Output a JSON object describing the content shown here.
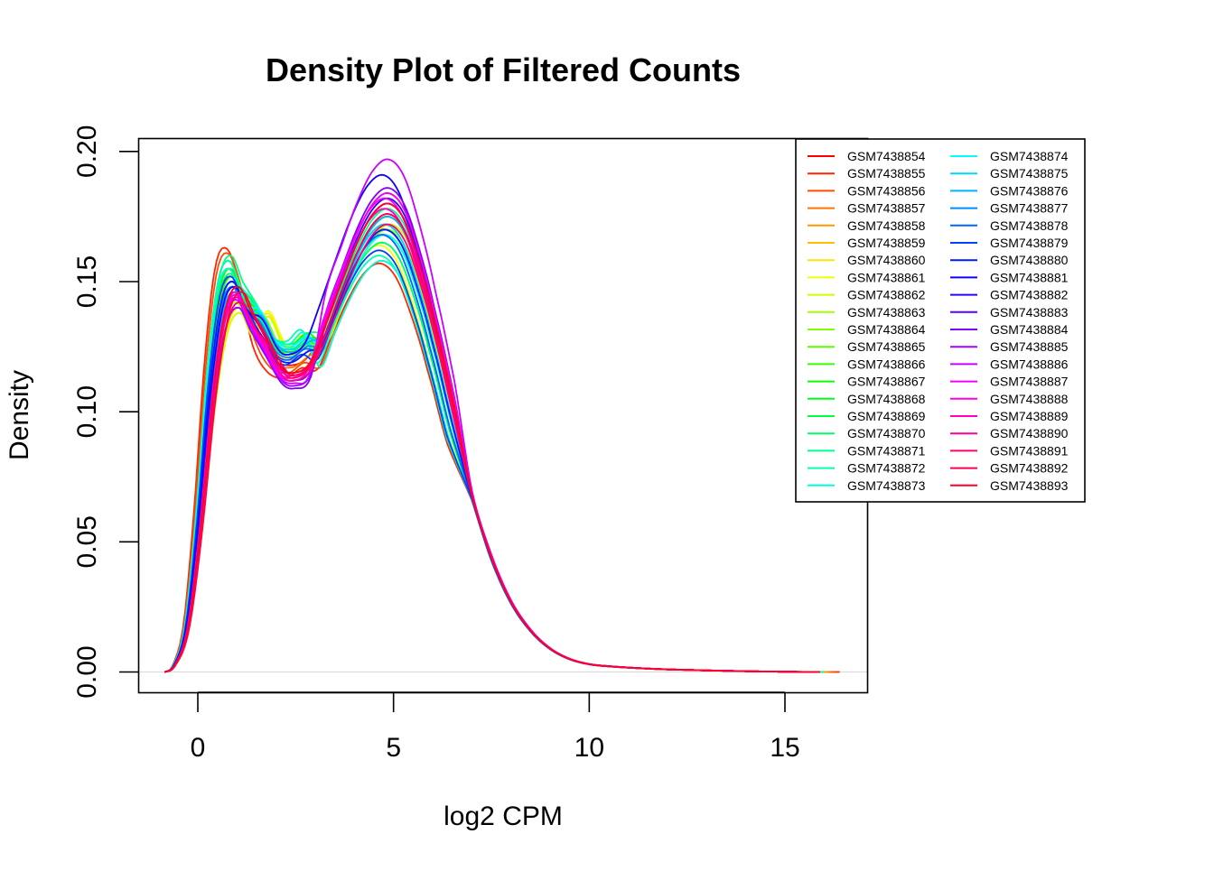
{
  "chart_data": {
    "type": "line",
    "title": "Density Plot of Filtered Counts",
    "xlabel": "log2 CPM",
    "ylabel": "Density",
    "xlim": [
      -1.5,
      17.1
    ],
    "ylim": [
      -0.0078,
      0.2048
    ],
    "x_ticks": [
      0,
      5,
      10,
      15
    ],
    "y_ticks": [
      0.0,
      0.05,
      0.1,
      0.15,
      0.2
    ],
    "x_tick_labels": [
      "0",
      "5",
      "10",
      "15"
    ],
    "y_tick_labels": [
      "0.00",
      "0.05",
      "0.10",
      "0.15",
      "0.20"
    ],
    "grid": false,
    "legend_position": "top-right",
    "legend_columns": 2,
    "baseline": 0,
    "shape_anchors": {
      "x": [
        -0.85,
        -0.6,
        -0.3,
        0.0,
        0.3,
        0.6,
        0.9,
        1.2,
        1.6,
        2.0,
        2.4,
        2.8,
        3.2,
        3.6,
        4.0,
        4.4,
        4.8,
        5.2,
        5.6,
        6.0,
        6.5,
        7.0,
        7.5,
        8.0,
        8.5,
        9.0,
        9.5,
        10.0,
        10.5,
        11.0,
        11.5,
        12.0,
        12.5,
        13.0,
        14.0,
        15.0,
        16.0
      ],
      "y": [
        0.0,
        0.003,
        0.018,
        0.06,
        0.115,
        0.15,
        0.158,
        0.148,
        0.13,
        0.119,
        0.117,
        0.121,
        0.132,
        0.148,
        0.163,
        0.174,
        0.178,
        0.172,
        0.155,
        0.132,
        0.1,
        0.068,
        0.044,
        0.027,
        0.016,
        0.009,
        0.005,
        0.003,
        0.0022,
        0.0017,
        0.0013,
        0.001,
        0.0008,
        0.0006,
        0.0003,
        0.0001,
        0.0
      ]
    },
    "series": [
      {
        "name": "GSM7438854",
        "color": "#FF0000",
        "peak1_x": 0.8,
        "peak1_y": 0.158,
        "trough_y": 0.118,
        "peak2_x": 4.9,
        "peak2_y": 0.18,
        "x_end": 16.1
      },
      {
        "name": "GSM7438855",
        "color": "#FF2600",
        "peak1_x": 0.7,
        "peak1_y": 0.163,
        "trough_y": 0.113,
        "peak2_x": 4.6,
        "peak2_y": 0.157,
        "x_end": 16.4
      },
      {
        "name": "GSM7438856",
        "color": "#FF4D00",
        "peak1_x": 0.75,
        "peak1_y": 0.161,
        "trough_y": 0.115,
        "peak2_x": 4.7,
        "peak2_y": 0.158,
        "x_end": 16.3
      },
      {
        "name": "GSM7438857",
        "color": "#FF7300",
        "peak1_x": 0.8,
        "peak1_y": 0.155,
        "trough_y": 0.117,
        "peak2_x": 4.8,
        "peak2_y": 0.17,
        "x_end": 16.2
      },
      {
        "name": "GSM7438858",
        "color": "#FF9900",
        "peak1_x": 0.9,
        "peak1_y": 0.15,
        "trough_y": 0.12,
        "peak2_x": 4.9,
        "peak2_y": 0.175,
        "x_end": 16.1
      },
      {
        "name": "GSM7438859",
        "color": "#FFBF00",
        "peak1_x": 1.0,
        "peak1_y": 0.145,
        "trough_y": 0.122,
        "peak2_x": 4.8,
        "peak2_y": 0.17,
        "x_end": 16.0
      },
      {
        "name": "GSM7438860",
        "color": "#FFE500",
        "peak1_x": 1.1,
        "peak1_y": 0.14,
        "trough_y": 0.124,
        "peak2_x": 4.9,
        "peak2_y": 0.175,
        "x_end": 16.0
      },
      {
        "name": "GSM7438861",
        "color": "#F2FF00",
        "peak1_x": 1.1,
        "peak1_y": 0.138,
        "trough_y": 0.125,
        "peak2_x": 4.6,
        "peak2_y": 0.164,
        "x_end": 16.0
      },
      {
        "name": "GSM7438862",
        "color": "#CCFF00",
        "peak1_x": 1.1,
        "peak1_y": 0.138,
        "trough_y": 0.123,
        "peak2_x": 5.0,
        "peak2_y": 0.172,
        "x_end": 16.0
      },
      {
        "name": "GSM7438863",
        "color": "#A6FF00",
        "peak1_x": 1.0,
        "peak1_y": 0.142,
        "trough_y": 0.122,
        "peak2_x": 4.9,
        "peak2_y": 0.17,
        "x_end": 16.0
      },
      {
        "name": "GSM7438864",
        "color": "#80FF00",
        "peak1_x": 1.0,
        "peak1_y": 0.145,
        "trough_y": 0.123,
        "peak2_x": 4.8,
        "peak2_y": 0.168,
        "x_end": 16.0
      },
      {
        "name": "GSM7438865",
        "color": "#59FF00",
        "peak1_x": 0.9,
        "peak1_y": 0.15,
        "trough_y": 0.124,
        "peak2_x": 4.7,
        "peak2_y": 0.165,
        "x_end": 16.0
      },
      {
        "name": "GSM7438866",
        "color": "#33FF00",
        "peak1_x": 0.9,
        "peak1_y": 0.152,
        "trough_y": 0.125,
        "peak2_x": 4.8,
        "peak2_y": 0.168,
        "x_end": 16.0
      },
      {
        "name": "GSM7438867",
        "color": "#0DFF00",
        "peak1_x": 0.8,
        "peak1_y": 0.158,
        "trough_y": 0.126,
        "peak2_x": 4.8,
        "peak2_y": 0.172,
        "x_end": 16.0
      },
      {
        "name": "GSM7438868",
        "color": "#00FF1A",
        "peak1_x": 0.85,
        "peak1_y": 0.155,
        "trough_y": 0.124,
        "peak2_x": 4.9,
        "peak2_y": 0.175,
        "x_end": 16.0
      },
      {
        "name": "GSM7438869",
        "color": "#00FF40",
        "peak1_x": 0.85,
        "peak1_y": 0.153,
        "trough_y": 0.123,
        "peak2_x": 4.8,
        "peak2_y": 0.17,
        "x_end": 16.0
      },
      {
        "name": "GSM7438870",
        "color": "#00FF66",
        "peak1_x": 0.9,
        "peak1_y": 0.15,
        "trough_y": 0.122,
        "peak2_x": 4.7,
        "peak2_y": 0.165,
        "x_end": 16.0
      },
      {
        "name": "GSM7438871",
        "color": "#00FF8C",
        "peak1_x": 0.85,
        "peak1_y": 0.16,
        "trough_y": 0.126,
        "peak2_x": 4.9,
        "peak2_y": 0.178,
        "x_end": 16.0
      },
      {
        "name": "GSM7438872",
        "color": "#00FFB3",
        "peak1_x": 0.8,
        "peak1_y": 0.158,
        "trough_y": 0.127,
        "peak2_x": 4.6,
        "peak2_y": 0.16,
        "x_end": 15.9
      },
      {
        "name": "GSM7438873",
        "color": "#00FFD9",
        "peak1_x": 0.8,
        "peak1_y": 0.155,
        "trough_y": 0.126,
        "peak2_x": 4.7,
        "peak2_y": 0.158,
        "x_end": 15.9
      },
      {
        "name": "GSM7438874",
        "color": "#00FFFF",
        "peak1_x": 0.9,
        "peak1_y": 0.15,
        "trough_y": 0.125,
        "peak2_x": 4.8,
        "peak2_y": 0.168,
        "x_end": 15.9
      },
      {
        "name": "GSM7438875",
        "color": "#00D9FF",
        "peak1_x": 0.9,
        "peak1_y": 0.148,
        "trough_y": 0.124,
        "peak2_x": 4.8,
        "peak2_y": 0.172,
        "x_end": 15.9
      },
      {
        "name": "GSM7438876",
        "color": "#00B2FF",
        "peak1_x": 0.95,
        "peak1_y": 0.146,
        "trough_y": 0.123,
        "peak2_x": 4.9,
        "peak2_y": 0.175,
        "x_end": 15.9
      },
      {
        "name": "GSM7438877",
        "color": "#008CFF",
        "peak1_x": 0.9,
        "peak1_y": 0.148,
        "trough_y": 0.121,
        "peak2_x": 4.8,
        "peak2_y": 0.17,
        "x_end": 15.9
      },
      {
        "name": "GSM7438878",
        "color": "#0066FF",
        "peak1_x": 0.9,
        "peak1_y": 0.15,
        "trough_y": 0.12,
        "peak2_x": 4.7,
        "peak2_y": 0.168,
        "x_end": 15.9
      },
      {
        "name": "GSM7438879",
        "color": "#0040FF",
        "peak1_x": 0.85,
        "peak1_y": 0.152,
        "trough_y": 0.118,
        "peak2_x": 4.6,
        "peak2_y": 0.162,
        "x_end": 15.9
      },
      {
        "name": "GSM7438880",
        "color": "#001AFF",
        "peak1_x": 0.9,
        "peak1_y": 0.15,
        "trough_y": 0.119,
        "peak2_x": 4.8,
        "peak2_y": 0.17,
        "x_end": 15.9
      },
      {
        "name": "GSM7438881",
        "color": "#0D00FF",
        "peak1_x": 0.95,
        "peak1_y": 0.148,
        "trough_y": 0.122,
        "peak2_x": 4.7,
        "peak2_y": 0.191,
        "x_end": 15.9
      },
      {
        "name": "GSM7438882",
        "color": "#3300FF",
        "peak1_x": 1.0,
        "peak1_y": 0.145,
        "trough_y": 0.115,
        "peak2_x": 4.9,
        "peak2_y": 0.182,
        "x_end": 15.9
      },
      {
        "name": "GSM7438883",
        "color": "#5900FF",
        "peak1_x": 1.0,
        "peak1_y": 0.143,
        "trough_y": 0.112,
        "peak2_x": 4.9,
        "peak2_y": 0.184,
        "x_end": 15.9
      },
      {
        "name": "GSM7438884",
        "color": "#8000FF",
        "peak1_x": 1.05,
        "peak1_y": 0.14,
        "trough_y": 0.109,
        "peak2_x": 4.9,
        "peak2_y": 0.186,
        "x_end": 15.9
      },
      {
        "name": "GSM7438885",
        "color": "#A600FF",
        "peak1_x": 1.05,
        "peak1_y": 0.14,
        "trough_y": 0.11,
        "peak2_x": 4.9,
        "peak2_y": 0.18,
        "x_end": 15.9
      },
      {
        "name": "GSM7438886",
        "color": "#CC00FF",
        "peak1_x": 1.0,
        "peak1_y": 0.143,
        "trough_y": 0.111,
        "peak2_x": 4.9,
        "peak2_y": 0.197,
        "x_end": 15.9
      },
      {
        "name": "GSM7438887",
        "color": "#F200FF",
        "peak1_x": 1.0,
        "peak1_y": 0.144,
        "trough_y": 0.112,
        "peak2_x": 4.8,
        "peak2_y": 0.182,
        "x_end": 15.9
      },
      {
        "name": "GSM7438888",
        "color": "#FF00E5",
        "peak1_x": 1.0,
        "peak1_y": 0.145,
        "trough_y": 0.114,
        "peak2_x": 4.9,
        "peak2_y": 0.184,
        "x_end": 15.9
      },
      {
        "name": "GSM7438889",
        "color": "#FF00BF",
        "peak1_x": 1.0,
        "peak1_y": 0.146,
        "trough_y": 0.113,
        "peak2_x": 4.8,
        "peak2_y": 0.178,
        "x_end": 15.9
      },
      {
        "name": "GSM7438890",
        "color": "#FF0099",
        "peak1_x": 1.05,
        "peak1_y": 0.144,
        "trough_y": 0.112,
        "peak2_x": 4.9,
        "peak2_y": 0.176,
        "x_end": 15.9
      },
      {
        "name": "GSM7438891",
        "color": "#FF0073",
        "peak1_x": 1.1,
        "peak1_y": 0.142,
        "trough_y": 0.113,
        "peak2_x": 4.9,
        "peak2_y": 0.172,
        "x_end": 15.9
      },
      {
        "name": "GSM7438892",
        "color": "#FF004D",
        "peak1_x": 1.15,
        "peak1_y": 0.146,
        "trough_y": 0.114,
        "peak2_x": 4.9,
        "peak2_y": 0.176,
        "x_end": 15.9
      },
      {
        "name": "GSM7438893",
        "color": "#FF0026",
        "peak1_x": 1.05,
        "peak1_y": 0.148,
        "trough_y": 0.115,
        "peak2_x": 4.9,
        "peak2_y": 0.18,
        "x_end": 15.9
      }
    ]
  }
}
